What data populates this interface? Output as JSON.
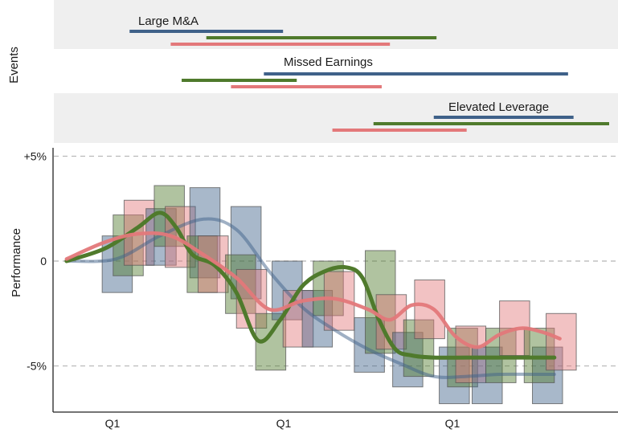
{
  "chart_data": {
    "type": "line",
    "ylabel": "Performance",
    "events_label": "Events",
    "x_tick_labels": [
      "Q1",
      "Q1",
      "Q1"
    ],
    "y_ticks": [
      {
        "value": 5,
        "label": "+5%"
      },
      {
        "value": 0,
        "label": "0"
      },
      {
        "value": -5,
        "label": "-5%"
      }
    ],
    "ylim": [
      -7.2,
      5.4
    ],
    "xlim": [
      0,
      100
    ],
    "grid": "horizontal-dashed",
    "colors": {
      "blue": "#3f6189",
      "green": "#4f7a2c",
      "red": "#e3787a",
      "panel": "#efefef"
    },
    "event_panels": [
      {
        "label": "Large M&A",
        "bars": [
          {
            "color": "blue",
            "start": 12.5,
            "end": 40.5
          },
          {
            "color": "green",
            "start": 26.5,
            "end": 68.5
          },
          {
            "color": "red",
            "start": 20.0,
            "end": 60.0
          }
        ]
      },
      {
        "label": "Missed Earnings",
        "bars": [
          {
            "color": "blue",
            "start": 37.0,
            "end": 92.5
          },
          {
            "color": "green",
            "start": 22.0,
            "end": 43.0
          },
          {
            "color": "red",
            "start": 31.0,
            "end": 58.5
          }
        ]
      },
      {
        "label": "Elevated Leverage",
        "bars": [
          {
            "color": "blue",
            "start": 68.0,
            "end": 93.5
          },
          {
            "color": "green",
            "start": 57.0,
            "end": 100.0
          },
          {
            "color": "red",
            "start": 49.5,
            "end": 74.0
          }
        ]
      }
    ],
    "series": [
      {
        "color": "blue",
        "x": [
          1,
          10,
          18,
          26,
          32,
          38,
          44,
          50,
          56,
          62,
          68,
          74,
          80,
          86,
          90
        ],
        "values": [
          0.0,
          0.1,
          1.2,
          2.0,
          1.5,
          -0.5,
          -2.2,
          -3.3,
          -4.2,
          -4.9,
          -5.5,
          -5.5,
          -5.4,
          -5.4,
          -5.4
        ]
      },
      {
        "color": "green",
        "x": [
          1,
          8,
          14,
          18,
          21,
          24,
          28,
          32,
          36,
          40,
          44,
          48,
          52,
          55,
          58,
          61,
          64,
          68,
          74,
          80,
          86,
          90
        ],
        "values": [
          0.0,
          0.6,
          1.6,
          2.3,
          1.6,
          0.3,
          -0.2,
          -1.5,
          -3.8,
          -2.8,
          -1.2,
          -0.5,
          -0.3,
          -0.8,
          -2.8,
          -4.2,
          -4.5,
          -4.6,
          -4.6,
          -4.6,
          -4.6,
          -4.6
        ]
      },
      {
        "color": "red",
        "x": [
          1,
          8,
          14,
          20,
          26,
          32,
          38,
          44,
          50,
          56,
          60,
          64,
          68,
          72,
          76,
          80,
          84,
          88,
          91
        ],
        "values": [
          0.1,
          0.9,
          1.3,
          1.2,
          0.3,
          -0.8,
          -2.3,
          -1.9,
          -1.8,
          -2.3,
          -2.8,
          -2.1,
          -2.3,
          -3.6,
          -4.1,
          -3.5,
          -3.2,
          -3.4,
          -3.7
        ]
      }
    ],
    "boxes": [
      {
        "color": "blue",
        "x0": 7.5,
        "x1": 13.0,
        "low": -1.5,
        "high": 1.2
      },
      {
        "color": "green",
        "x0": 9.5,
        "x1": 15.0,
        "low": -0.7,
        "high": 2.2
      },
      {
        "color": "red",
        "x0": 11.5,
        "x1": 17.0,
        "low": -0.2,
        "high": 2.9
      },
      {
        "color": "blue",
        "x0": 15.5,
        "x1": 21.0,
        "low": -0.2,
        "high": 2.5
      },
      {
        "color": "green",
        "x0": 17.0,
        "x1": 22.5,
        "low": 0.7,
        "high": 3.6
      },
      {
        "color": "red",
        "x0": 19.0,
        "x1": 24.5,
        "low": -0.3,
        "high": 2.6
      },
      {
        "color": "blue",
        "x0": 23.5,
        "x1": 29.0,
        "low": -0.8,
        "high": 3.5
      },
      {
        "color": "green",
        "x0": 23.0,
        "x1": 28.5,
        "low": -1.5,
        "high": 1.2
      },
      {
        "color": "red",
        "x0": 25.0,
        "x1": 30.5,
        "low": -1.5,
        "high": 1.2
      },
      {
        "color": "blue",
        "x0": 31.0,
        "x1": 36.5,
        "low": -1.8,
        "high": 2.6
      },
      {
        "color": "green",
        "x0": 30.0,
        "x1": 35.5,
        "low": -2.5,
        "high": 0.3
      },
      {
        "color": "red",
        "x0": 32.0,
        "x1": 37.5,
        "low": -3.2,
        "high": -0.4
      },
      {
        "color": "green",
        "x0": 35.5,
        "x1": 41.0,
        "low": -5.2,
        "high": -2.5
      },
      {
        "color": "blue",
        "x0": 38.5,
        "x1": 44.0,
        "low": -2.8,
        "high": 0.0
      },
      {
        "color": "red",
        "x0": 40.5,
        "x1": 46.0,
        "low": -4.1,
        "high": -1.4
      },
      {
        "color": "blue",
        "x0": 44.0,
        "x1": 49.5,
        "low": -4.1,
        "high": -1.4
      },
      {
        "color": "green",
        "x0": 46.0,
        "x1": 51.5,
        "low": -2.6,
        "high": 0.0
      },
      {
        "color": "red",
        "x0": 48.0,
        "x1": 53.5,
        "low": -3.3,
        "high": -0.5
      },
      {
        "color": "blue",
        "x0": 53.5,
        "x1": 59.0,
        "low": -5.3,
        "high": -2.7
      },
      {
        "color": "green",
        "x0": 55.5,
        "x1": 61.0,
        "low": -4.4,
        "high": 0.5
      },
      {
        "color": "red",
        "x0": 57.5,
        "x1": 63.0,
        "low": -4.2,
        "high": -1.6
      },
      {
        "color": "blue",
        "x0": 60.5,
        "x1": 66.0,
        "low": -6.0,
        "high": -3.4
      },
      {
        "color": "green",
        "x0": 62.5,
        "x1": 68.0,
        "low": -5.5,
        "high": -2.8
      },
      {
        "color": "red",
        "x0": 64.5,
        "x1": 70.0,
        "low": -3.7,
        "high": -0.9
      },
      {
        "color": "blue",
        "x0": 69.0,
        "x1": 74.5,
        "low": -6.8,
        "high": -4.1
      },
      {
        "color": "green",
        "x0": 70.5,
        "x1": 76.0,
        "low": -6.0,
        "high": -3.2
      },
      {
        "color": "red",
        "x0": 72.0,
        "x1": 77.5,
        "low": -5.8,
        "high": -3.1
      },
      {
        "color": "blue",
        "x0": 75.0,
        "x1": 80.5,
        "low": -6.8,
        "high": -4.1
      },
      {
        "color": "green",
        "x0": 77.5,
        "x1": 83.0,
        "low": -5.8,
        "high": -3.2
      },
      {
        "color": "red",
        "x0": 80.0,
        "x1": 85.5,
        "low": -4.5,
        "high": -1.9
      },
      {
        "color": "blue",
        "x0": 86.0,
        "x1": 91.5,
        "low": -6.8,
        "high": -4.1
      },
      {
        "color": "green",
        "x0": 84.5,
        "x1": 90.0,
        "low": -5.8,
        "high": -3.2
      },
      {
        "color": "red",
        "x0": 88.5,
        "x1": 94.0,
        "low": -5.2,
        "high": -2.5
      }
    ]
  }
}
